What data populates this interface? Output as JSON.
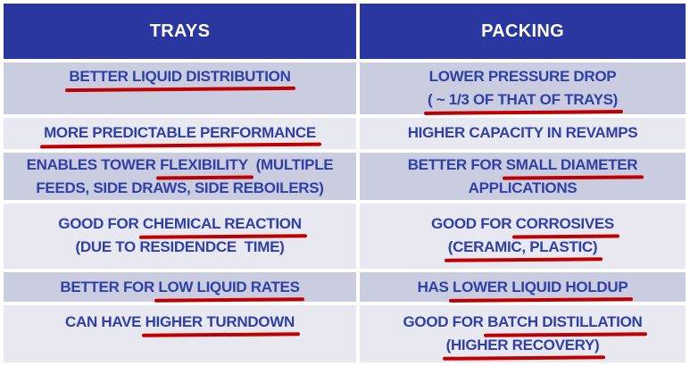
{
  "colors": {
    "header_bg": "#2a37a0",
    "header_text": "#ffffff",
    "row_dark": "#cacce0",
    "row_light": "#e7e8f0",
    "text_blue": "#3040a8",
    "underline_red": "#c00000"
  },
  "table": {
    "headers": [
      {
        "label": "TRAYS"
      },
      {
        "label": "PACKING"
      }
    ],
    "rows": [
      {
        "cells": [
          {
            "lines": [
              {
                "segs": [
                  {
                    "t": "BETTER LIQUID DISTRIBUTION",
                    "u": true
                  }
                ]
              }
            ]
          },
          {
            "lines": [
              {
                "segs": [
                  {
                    "t": "LOWER PRESSURE DROP",
                    "u": false
                  }
                ]
              },
              {
                "segs": [
                  {
                    "t": "( ~ 1/3 OF THAT OF TRAYS)",
                    "u": true
                  }
                ]
              }
            ]
          }
        ]
      },
      {
        "cells": [
          {
            "lines": [
              {
                "segs": [
                  {
                    "t": "MORE PREDICTABLE PERFORMANCE",
                    "u": true
                  }
                ]
              }
            ]
          },
          {
            "lines": [
              {
                "segs": [
                  {
                    "t": "HIGHER CAPACITY IN REVAMPS",
                    "u": false
                  }
                ]
              }
            ]
          }
        ]
      },
      {
        "cells": [
          {
            "lines": [
              {
                "segs": [
                  {
                    "t": "ENABLES TOWER ",
                    "u": false
                  },
                  {
                    "t": "FLEXIBILITY",
                    "u": true
                  },
                  {
                    "t": "  (MULTIPLE",
                    "u": false
                  }
                ]
              },
              {
                "segs": [
                  {
                    "t": "FEEDS, SIDE DRAWS, SIDE REBOILERS)",
                    "u": false
                  }
                ]
              }
            ]
          },
          {
            "lines": [
              {
                "segs": [
                  {
                    "t": "BETTER FOR ",
                    "u": false
                  },
                  {
                    "t": "SMALL DIAMETER",
                    "u": true
                  }
                ]
              },
              {
                "segs": [
                  {
                    "t": "APPLICATIONS",
                    "u": false
                  }
                ]
              }
            ]
          }
        ]
      },
      {
        "cells": [
          {
            "lines": [
              {
                "segs": [
                  {
                    "t": "GOOD FOR ",
                    "u": false
                  },
                  {
                    "t": "CHEMICAL REACTION",
                    "u": true
                  }
                ]
              },
              {
                "segs": [
                  {
                    "t": "(DUE TO RESIDENDCE  TIME)",
                    "u": false
                  }
                ]
              }
            ]
          },
          {
            "lines": [
              {
                "segs": [
                  {
                    "t": "GOOD FOR ",
                    "u": false
                  },
                  {
                    "t": "CORROSIVES",
                    "u": true
                  }
                ]
              },
              {
                "segs": [
                  {
                    "t": "(CERAMIC, PLASTIC)",
                    "u": true
                  }
                ]
              }
            ]
          }
        ]
      },
      {
        "cells": [
          {
            "lines": [
              {
                "segs": [
                  {
                    "t": "BETTER FOR ",
                    "u": false
                  },
                  {
                    "t": "LOW LIQUID RATES",
                    "u": true
                  }
                ]
              }
            ]
          },
          {
            "lines": [
              {
                "segs": [
                  {
                    "t": "HAS ",
                    "u": false
                  },
                  {
                    "t": "LOWER LIQUID HOLDUP",
                    "u": true
                  }
                ]
              }
            ]
          }
        ]
      },
      {
        "cells": [
          {
            "lines": [
              {
                "segs": [
                  {
                    "t": "CAN HAVE ",
                    "u": false
                  },
                  {
                    "t": "HIGHER TURNDOWN",
                    "u": true
                  }
                ]
              }
            ]
          },
          {
            "lines": [
              {
                "segs": [
                  {
                    "t": "GOOD FOR ",
                    "u": false
                  },
                  {
                    "t": "BATCH DISTILLATION",
                    "u": true
                  }
                ]
              },
              {
                "segs": [
                  {
                    "t": "(HIGHER RECOVERY)",
                    "u": true
                  }
                ]
              }
            ]
          }
        ]
      }
    ]
  }
}
